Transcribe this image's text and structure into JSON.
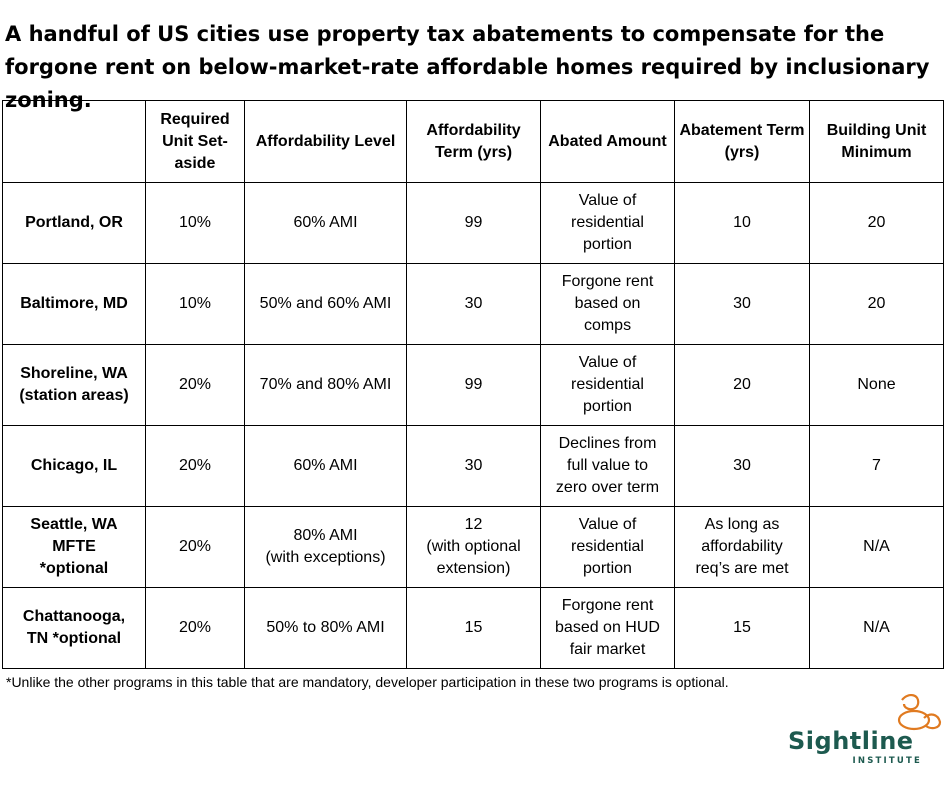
{
  "title": "A handful of US cities use property tax abatements to compensate for the forgone rent on below-market-rate affordable homes required by inclusionary zoning.",
  "table": {
    "headers": [
      "",
      "Required Unit Set-aside",
      "Affordability Level",
      "Affordability Term (yrs)",
      "Abated Amount",
      "Abatement Term (yrs)",
      "Building Unit Minimum"
    ],
    "rows": [
      [
        "Portland, OR",
        "10%",
        "60% AMI",
        "99",
        "Value of\nresidential\nportion",
        "10",
        "20"
      ],
      [
        "Baltimore, MD",
        "10%",
        "50% and 60% AMI",
        "30",
        "Forgone rent\nbased on\ncomps",
        "30",
        "20"
      ],
      [
        "Shoreline, WA\n(station areas)",
        "20%",
        "70% and 80% AMI",
        "99",
        "Value of\nresidential\nportion",
        "20",
        "None"
      ],
      [
        "Chicago, IL",
        "20%",
        "60% AMI",
        "30",
        "Declines from\nfull value to\nzero over term",
        "30",
        "7"
      ],
      [
        "Seattle, WA\nMFTE\n*optional",
        "20%",
        "80% AMI\n(with exceptions)",
        "12\n(with optional\nextension)",
        "Value of\nresidential\nportion",
        "As long as\naffordability\nreq’s are met",
        "N/A"
      ],
      [
        "Chattanooga,\nTN *optional",
        "20%",
        "50% to 80% AMI",
        "15",
        "Forgone rent\nbased on HUD\nfair market",
        "15",
        "N/A"
      ]
    ]
  },
  "footnote": "*Unlike the other programs in this table that are mandatory, developer participation in these two programs is optional.",
  "logo": {
    "name": "Sightline",
    "subtitle": "INSTITUTE",
    "icon": "sightline-logo-icon",
    "colors": {
      "text": "#1d5a4f",
      "mark": "#e07a20"
    }
  }
}
